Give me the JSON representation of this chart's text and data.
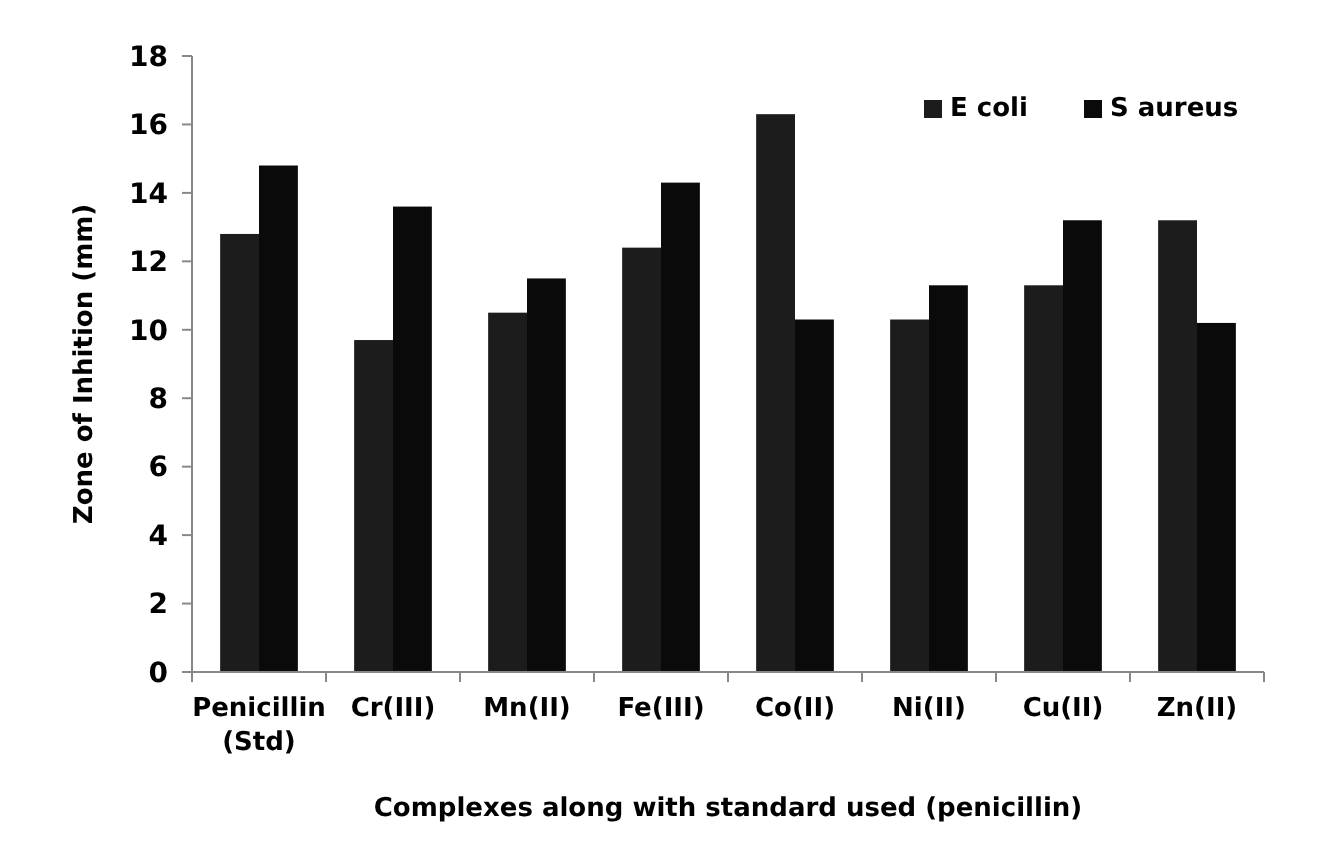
{
  "chart_data": {
    "type": "bar",
    "xlabel": "Complexes  along with standard used (penicillin)",
    "ylabel": "Zone of Inhition (mm)",
    "categories": [
      "Penicillin (Std)",
      "Cr(III)",
      "Mn(II)",
      "Fe(III)",
      "Co(II)",
      "Ni(II)",
      "Cu(II)",
      "Zn(II)"
    ],
    "series": [
      {
        "name": "E coli",
        "color": "#1c1c1c",
        "values": [
          12.8,
          9.7,
          10.5,
          12.4,
          16.3,
          10.3,
          11.3,
          13.2
        ]
      },
      {
        "name": "S aureus",
        "color": "#0a0a0a",
        "values": [
          14.8,
          13.6,
          11.5,
          14.3,
          10.3,
          11.3,
          13.2,
          10.2
        ]
      }
    ],
    "ylim": [
      0,
      18
    ],
    "yticks": [
      0,
      2,
      4,
      6,
      8,
      10,
      12,
      14,
      16,
      18
    ],
    "legend": "top right"
  }
}
